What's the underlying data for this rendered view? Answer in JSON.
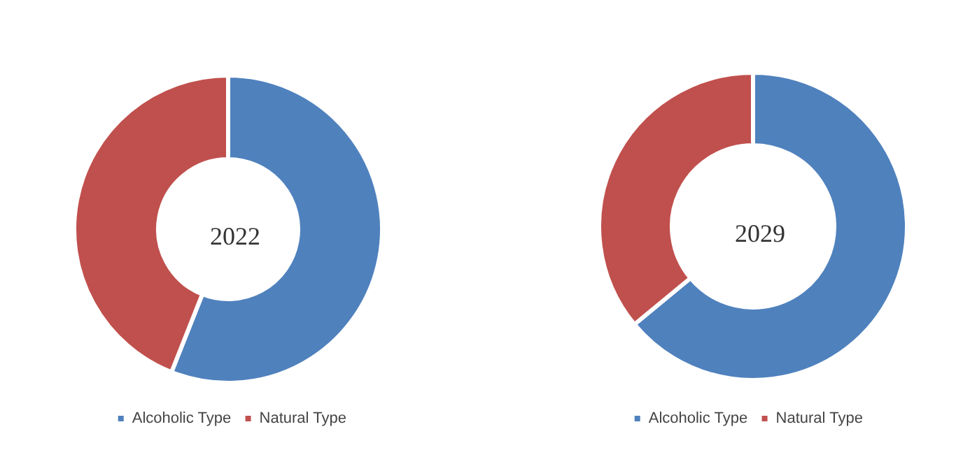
{
  "chart_data": [
    {
      "type": "donut",
      "title": "2022",
      "categories": [
        "Alcoholic Type",
        "Natural Type"
      ],
      "values": [
        56,
        44
      ],
      "colors": [
        "#4f81bd",
        "#c0504d"
      ],
      "legend": "bottom"
    },
    {
      "type": "donut",
      "title": "2029",
      "categories": [
        "Alcoholic Type",
        "Natural Type"
      ],
      "values": [
        64,
        36
      ],
      "colors": [
        "#4f81bd",
        "#c0504d"
      ],
      "legend": "bottom"
    }
  ]
}
